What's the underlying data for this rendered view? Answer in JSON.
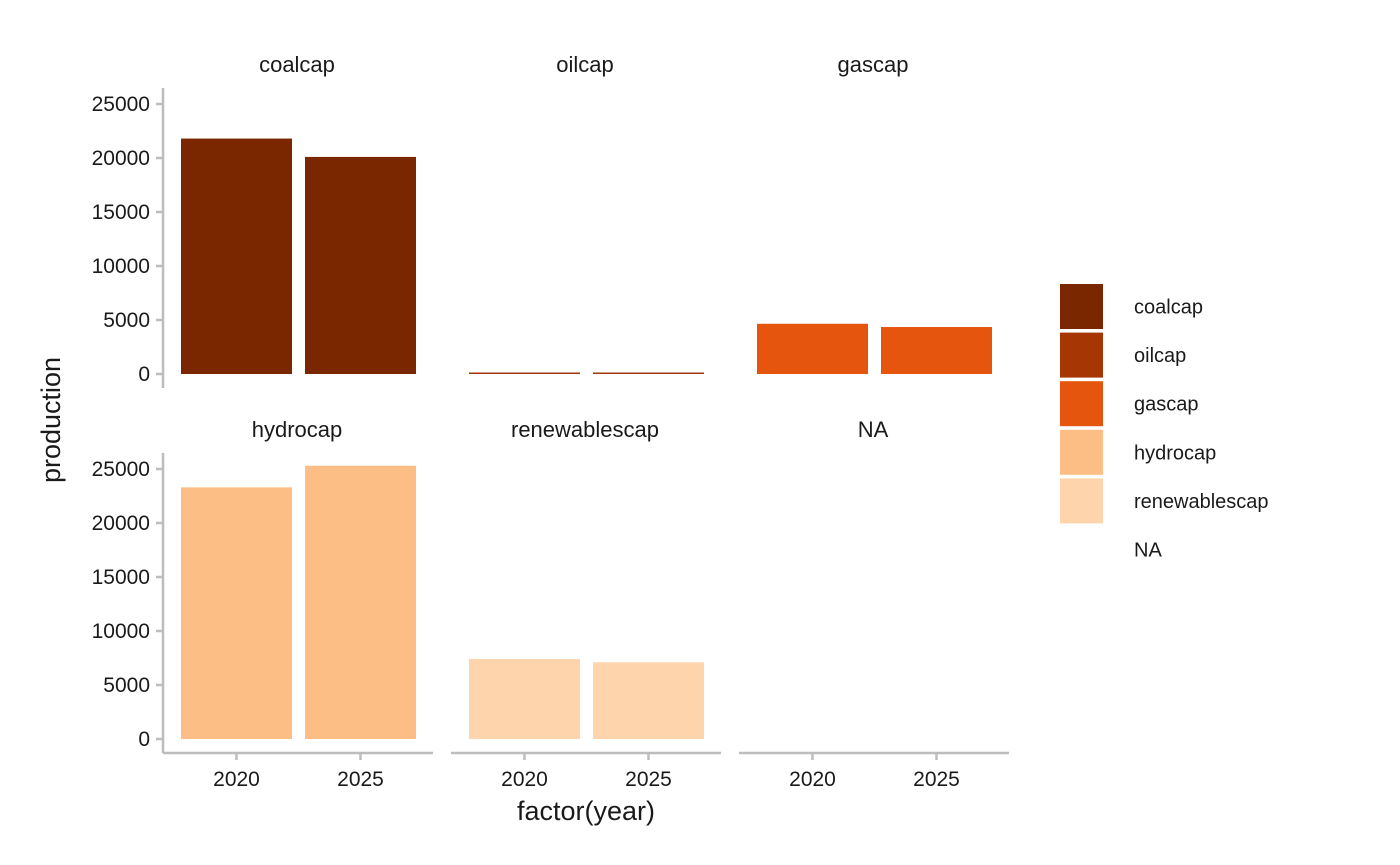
{
  "chart_data": {
    "type": "bar",
    "layout": "facet-grid",
    "xlabel": "factor(year)",
    "ylabel": "production",
    "categories": [
      "2020",
      "2025"
    ],
    "ylim": [
      0,
      25000
    ],
    "yticks": [
      0,
      5000,
      10000,
      15000,
      20000,
      25000
    ],
    "panels": [
      {
        "name": "coalcap",
        "values": [
          21800,
          20100
        ]
      },
      {
        "name": "oilcap",
        "values": [
          130,
          110
        ]
      },
      {
        "name": "gascap",
        "values": [
          4650,
          4350
        ]
      },
      {
        "name": "hydrocap",
        "values": [
          23300,
          25300
        ]
      },
      {
        "name": "renewablescap",
        "values": [
          7400,
          7100
        ]
      },
      {
        "name": "NA",
        "values": [
          0,
          0
        ]
      }
    ],
    "legend": {
      "position": "right",
      "entries": [
        {
          "name": "coalcap",
          "color": "#7A2700"
        },
        {
          "name": "oilcap",
          "color": "#A63603"
        },
        {
          "name": "gascap",
          "color": "#E6550D"
        },
        {
          "name": "hydrocap",
          "color": "#FDBE85"
        },
        {
          "name": "renewablescap",
          "color": "#FDD4AC"
        },
        {
          "name": "NA",
          "color": "none"
        }
      ]
    }
  }
}
